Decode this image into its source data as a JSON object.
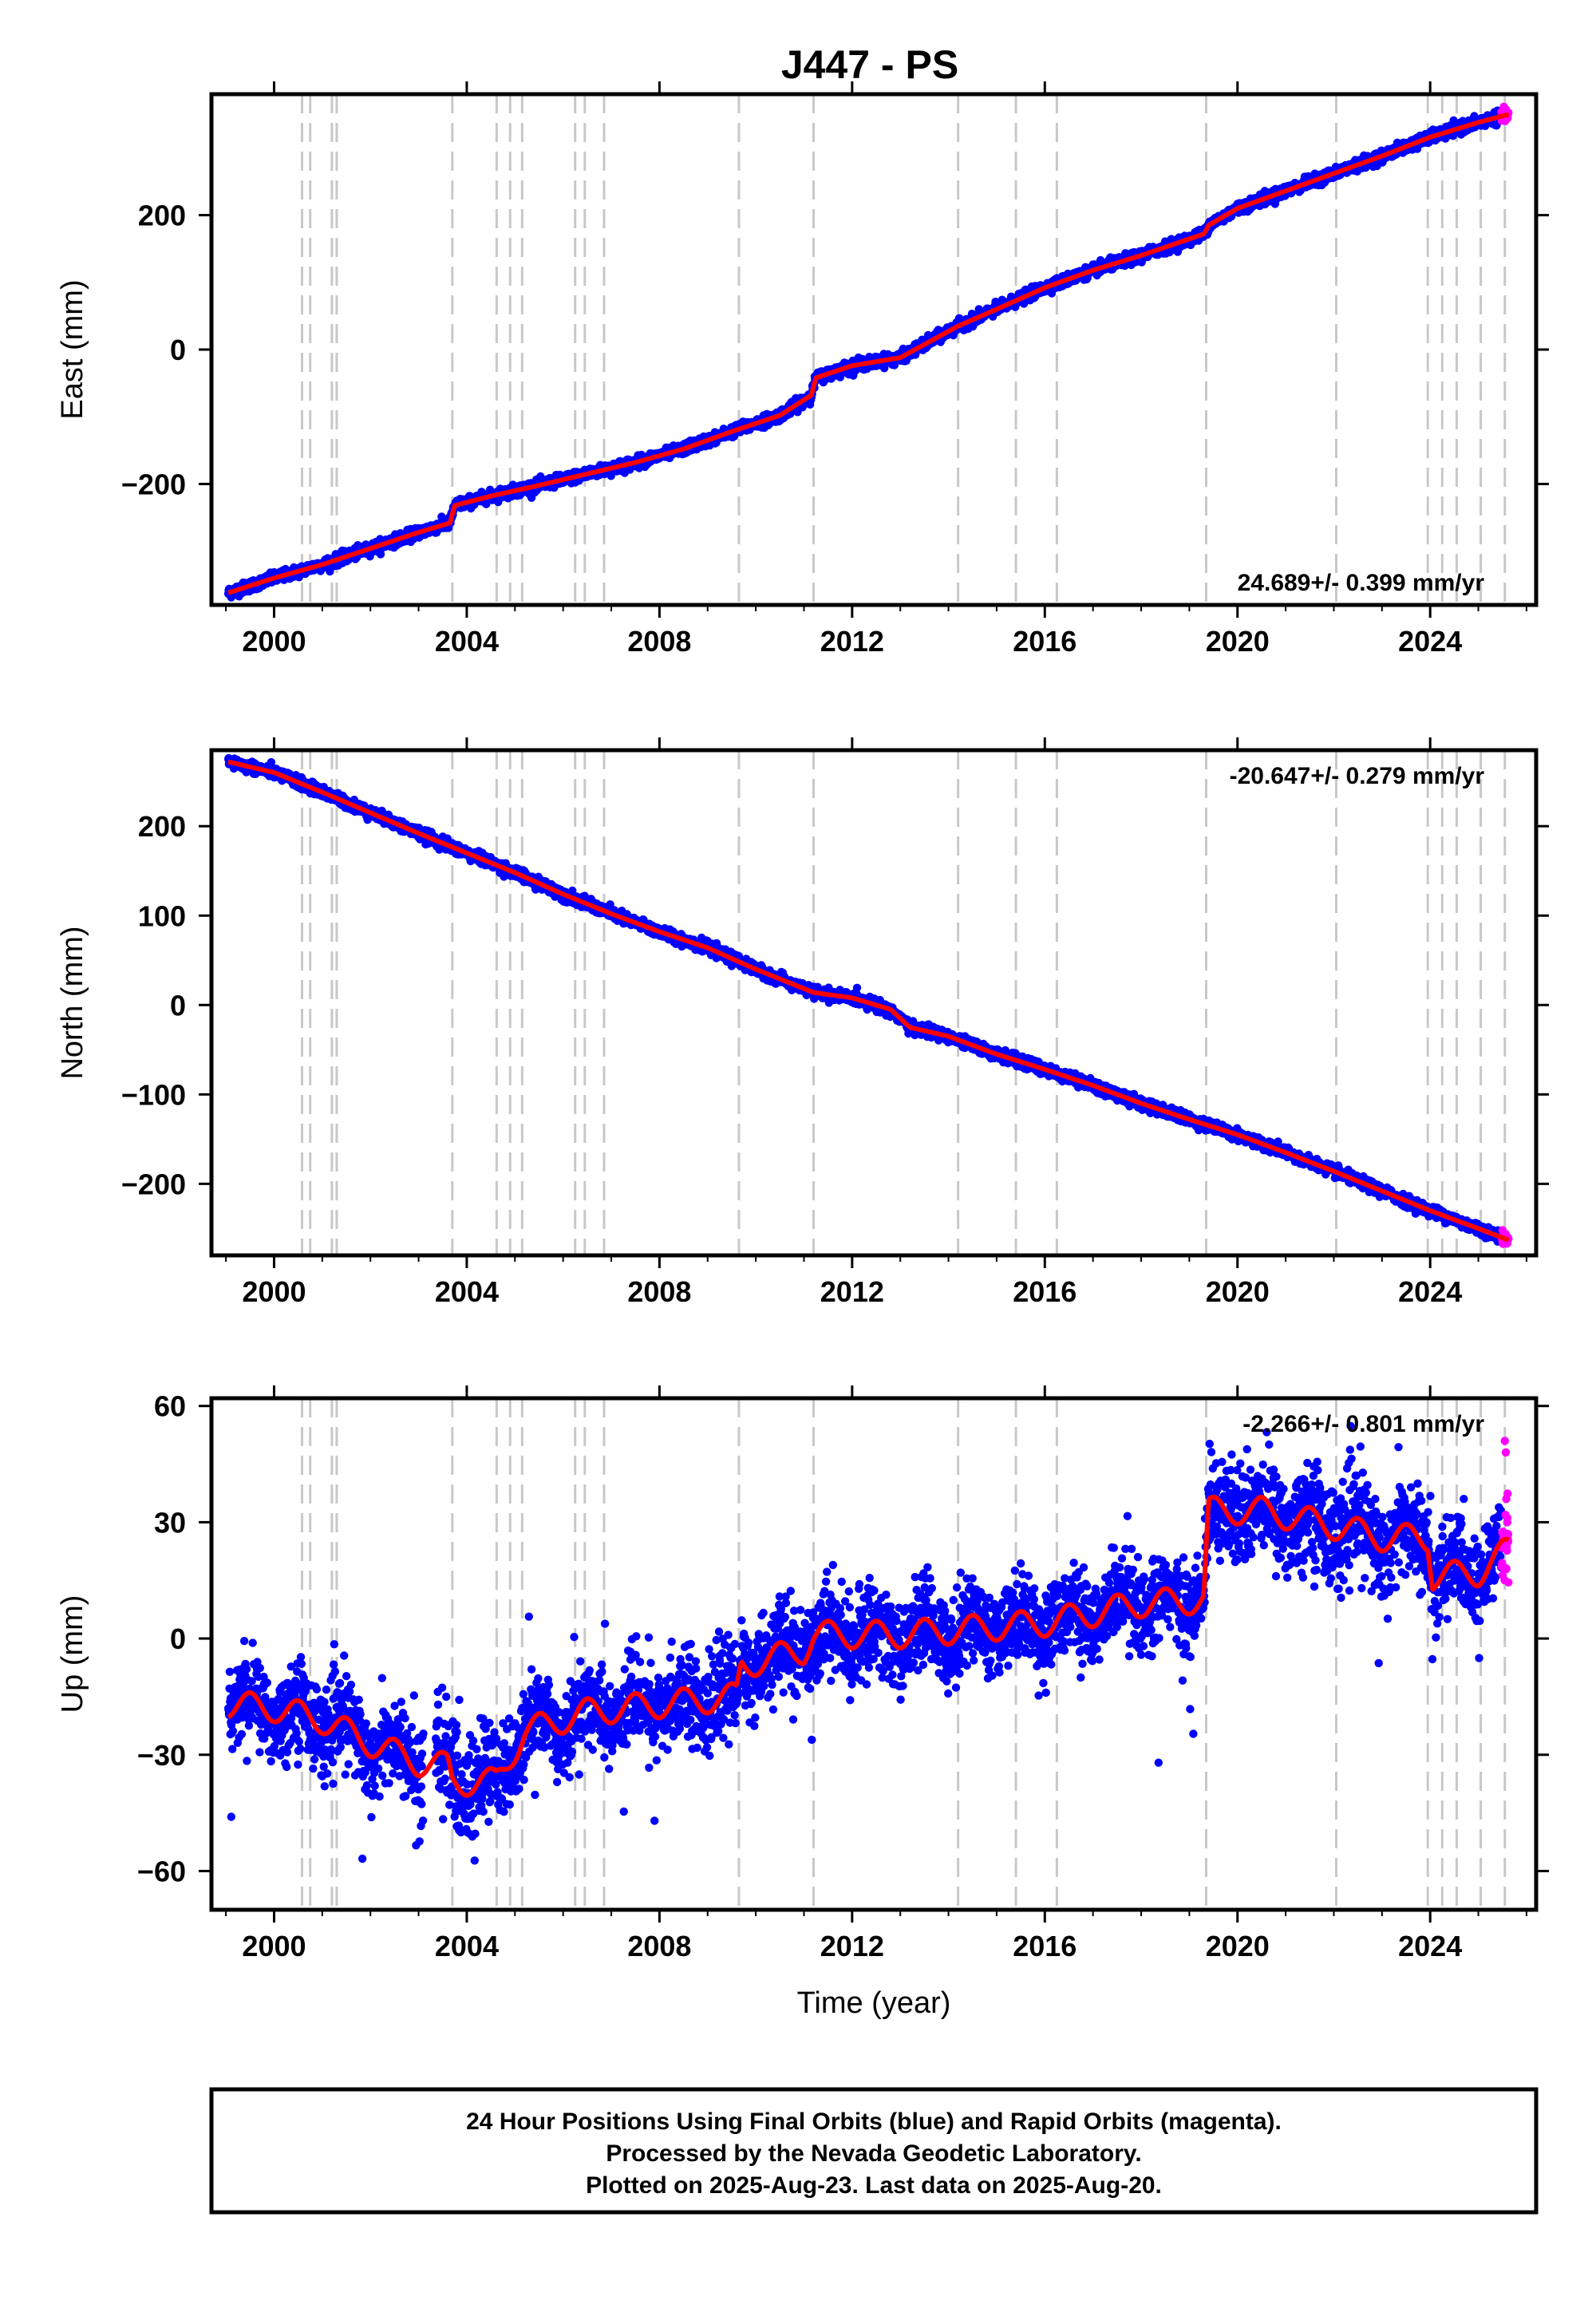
{
  "chart_data": {
    "type": "scatter",
    "title": "J447 - PS",
    "xlabel": "Time (year)",
    "xlim": [
      1998.7,
      2026.2
    ],
    "x_ticks": [
      2000,
      2004,
      2008,
      2012,
      2016,
      2020,
      2024
    ],
    "x_tick_labels": [
      "2000",
      "2004",
      "2008",
      "2012",
      "2016",
      "2020",
      "2024"
    ],
    "data_start": 1999.05,
    "data_end": 2025.63,
    "rapid_start": 2025.48,
    "colors": {
      "final": "#0000ff",
      "rapid": "#ff00ff",
      "model": "#ff0000",
      "event": "#c8c8c8",
      "axis": "#000000"
    },
    "event_lines": [
      2000.58,
      2000.75,
      2001.2,
      2001.3,
      2003.7,
      2004.62,
      2004.9,
      2005.15,
      2006.25,
      2006.45,
      2006.85,
      2009.65,
      2011.2,
      2014.2,
      2015.4,
      2016.25,
      2019.35,
      2022.05,
      2023.95,
      2024.25,
      2024.55,
      2025.05,
      2025.55
    ],
    "panels": [
      {
        "component": "east",
        "ylabel": "East (mm)",
        "ylim": [
          -380,
          380
        ],
        "y_ticks": [
          -200,
          0,
          200
        ],
        "y_tick_labels": [
          "−200",
          "0",
          "200"
        ],
        "rate_text": "24.689+/- 0.399 mm/yr",
        "rate_position": "bottom-right",
        "noise_mm": 4,
        "model_curve": [
          {
            "x": 1999.05,
            "y": -362
          },
          {
            "x": 2000.0,
            "y": -340
          },
          {
            "x": 2001.0,
            "y": -320
          },
          {
            "x": 2002.0,
            "y": -296
          },
          {
            "x": 2003.0,
            "y": -272
          },
          {
            "x": 2003.65,
            "y": -258
          },
          {
            "x": 2003.75,
            "y": -232
          },
          {
            "x": 2004.5,
            "y": -218
          },
          {
            "x": 2005.5,
            "y": -202
          },
          {
            "x": 2006.5,
            "y": -185
          },
          {
            "x": 2007.5,
            "y": -168
          },
          {
            "x": 2008.5,
            "y": -148
          },
          {
            "x": 2009.5,
            "y": -122
          },
          {
            "x": 2010.5,
            "y": -98
          },
          {
            "x": 2011.15,
            "y": -68
          },
          {
            "x": 2011.25,
            "y": -42
          },
          {
            "x": 2012.0,
            "y": -24
          },
          {
            "x": 2013.0,
            "y": -12
          },
          {
            "x": 2014.2,
            "y": 35
          },
          {
            "x": 2015.0,
            "y": 60
          },
          {
            "x": 2016.0,
            "y": 92
          },
          {
            "x": 2017.0,
            "y": 118
          },
          {
            "x": 2018.0,
            "y": 140
          },
          {
            "x": 2019.3,
            "y": 172
          },
          {
            "x": 2019.4,
            "y": 185
          },
          {
            "x": 2020.0,
            "y": 210
          },
          {
            "x": 2021.0,
            "y": 236
          },
          {
            "x": 2022.0,
            "y": 262
          },
          {
            "x": 2023.0,
            "y": 288
          },
          {
            "x": 2024.0,
            "y": 316
          },
          {
            "x": 2025.0,
            "y": 338
          },
          {
            "x": 2025.63,
            "y": 350
          }
        ]
      },
      {
        "component": "north",
        "ylabel": "North (mm)",
        "ylim": [
          -280,
          285
        ],
        "y_ticks": [
          -200,
          -100,
          0,
          100,
          200
        ],
        "y_tick_labels": [
          "−200",
          "−100",
          "0",
          "100",
          "200"
        ],
        "rate_text": "-20.647+/- 0.279 mm/yr",
        "rate_position": "top-right",
        "noise_mm": 3,
        "model_curve": [
          {
            "x": 1999.05,
            "y": 272
          },
          {
            "x": 2000.0,
            "y": 260
          },
          {
            "x": 2001.0,
            "y": 238
          },
          {
            "x": 2002.0,
            "y": 215
          },
          {
            "x": 2003.0,
            "y": 192
          },
          {
            "x": 2004.0,
            "y": 170
          },
          {
            "x": 2005.0,
            "y": 148
          },
          {
            "x": 2006.0,
            "y": 124
          },
          {
            "x": 2007.0,
            "y": 102
          },
          {
            "x": 2008.0,
            "y": 82
          },
          {
            "x": 2009.0,
            "y": 64
          },
          {
            "x": 2010.0,
            "y": 40
          },
          {
            "x": 2011.2,
            "y": 14
          },
          {
            "x": 2012.0,
            "y": 8
          },
          {
            "x": 2012.8,
            "y": -5
          },
          {
            "x": 2013.2,
            "y": -25
          },
          {
            "x": 2014.0,
            "y": -35
          },
          {
            "x": 2015.0,
            "y": -55
          },
          {
            "x": 2016.0,
            "y": -72
          },
          {
            "x": 2017.0,
            "y": -90
          },
          {
            "x": 2018.0,
            "y": -110
          },
          {
            "x": 2019.0,
            "y": -128
          },
          {
            "x": 2020.0,
            "y": -145
          },
          {
            "x": 2021.0,
            "y": -165
          },
          {
            "x": 2022.0,
            "y": -186
          },
          {
            "x": 2023.0,
            "y": -208
          },
          {
            "x": 2024.0,
            "y": -230
          },
          {
            "x": 2025.0,
            "y": -250
          },
          {
            "x": 2025.63,
            "y": -263
          }
        ]
      },
      {
        "component": "up",
        "ylabel": "Up (mm)",
        "ylim": [
          -70,
          62
        ],
        "y_ticks": [
          -60,
          -30,
          0,
          30,
          60
        ],
        "y_tick_labels": [
          "−60",
          "−30",
          "0",
          "30",
          "60"
        ],
        "rate_text": "-2.266+/- 0.801 mm/yr",
        "rate_position": "top-right",
        "noise_mm": 5.5,
        "model_seasonal_amplitude_mm": 3.5,
        "model_curve": [
          {
            "x": 1999.05,
            "y": -17
          },
          {
            "x": 2000.0,
            "y": -18
          },
          {
            "x": 2001.0,
            "y": -21
          },
          {
            "x": 2002.0,
            "y": -27
          },
          {
            "x": 2003.0,
            "y": -32
          },
          {
            "x": 2003.6,
            "y": -33
          },
          {
            "x": 2003.7,
            "y": -37
          },
          {
            "x": 2004.6,
            "y": -37
          },
          {
            "x": 2005.2,
            "y": -24
          },
          {
            "x": 2006.5,
            "y": -19
          },
          {
            "x": 2008.0,
            "y": -17
          },
          {
            "x": 2009.6,
            "y": -15
          },
          {
            "x": 2009.7,
            "y": -7
          },
          {
            "x": 2011.0,
            "y": -3
          },
          {
            "x": 2011.2,
            "y": 1
          },
          {
            "x": 2013.0,
            "y": 1
          },
          {
            "x": 2016.0,
            "y": 4
          },
          {
            "x": 2018.0,
            "y": 9
          },
          {
            "x": 2019.3,
            "y": 10
          },
          {
            "x": 2019.4,
            "y": 33
          },
          {
            "x": 2020.5,
            "y": 33
          },
          {
            "x": 2022.0,
            "y": 29
          },
          {
            "x": 2023.0,
            "y": 26
          },
          {
            "x": 2023.95,
            "y": 26
          },
          {
            "x": 2024.05,
            "y": 16
          },
          {
            "x": 2025.0,
            "y": 17
          },
          {
            "x": 2025.63,
            "y": 23
          }
        ],
        "noise_segments": [
          {
            "x0": 2003.0,
            "x1": 2004.5,
            "noise_mm": 7
          },
          {
            "x0": 2019.4,
            "x1": 2023.95,
            "noise_mm": 6.5
          }
        ],
        "rapid_points": [
          {
            "x": 2025.55,
            "y": 51
          },
          {
            "x": 2025.57,
            "y": 48
          },
          {
            "x": 2025.58,
            "y": 36
          },
          {
            "x": 2025.6,
            "y": 30
          },
          {
            "x": 2025.61,
            "y": 27
          },
          {
            "x": 2025.62,
            "y": 25
          }
        ]
      }
    ],
    "footer_lines": [
      "24 Hour Positions Using Final Orbits (blue) and Rapid Orbits (magenta).",
      "Processed by the Nevada Geodetic Laboratory.",
      "Plotted on 2025-Aug-23. Last data on 2025-Aug-20."
    ]
  }
}
